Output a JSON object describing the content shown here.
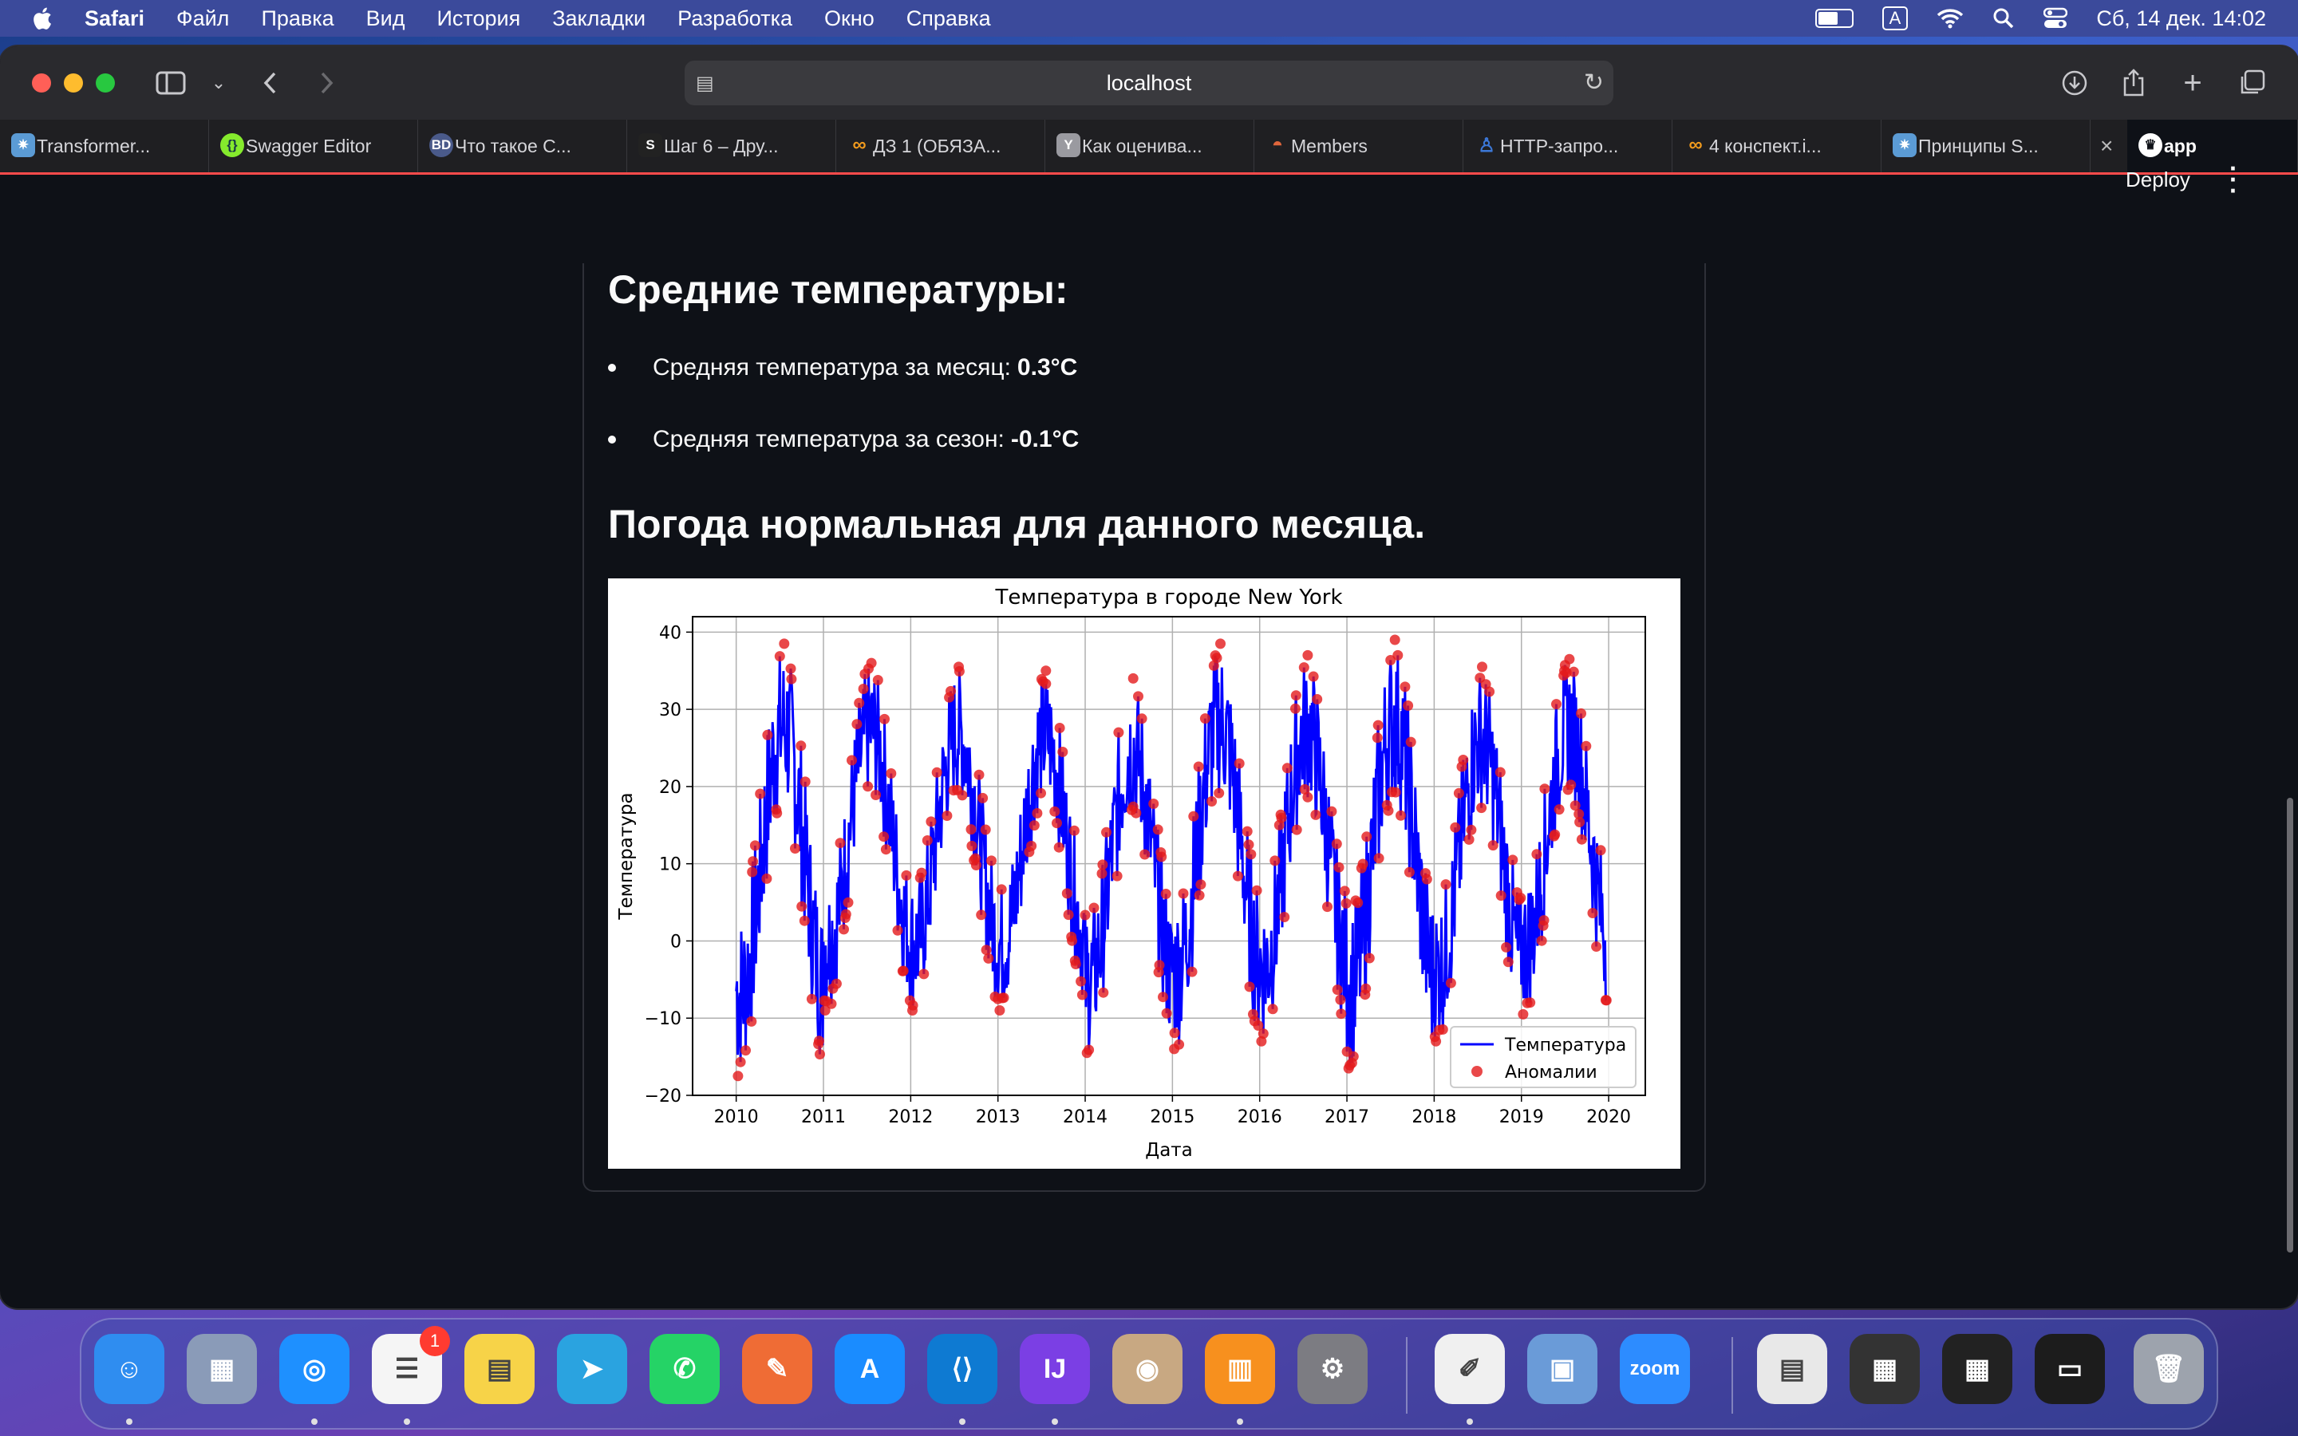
{
  "menubar": {
    "app_name": "Safari",
    "items": [
      "Файл",
      "Правка",
      "Вид",
      "История",
      "Закладки",
      "Разработка",
      "Окно",
      "Справка"
    ],
    "input_indicator": "A",
    "datetime": "Сб, 14 дек.  14:02"
  },
  "browser": {
    "address": "localhost",
    "tabs": [
      {
        "label": "Transformer...",
        "icon": "gear-icon",
        "color": "#5b9bd5"
      },
      {
        "label": "Swagger Editor",
        "icon": "swagger-icon",
        "color": "#85ea2d"
      },
      {
        "label": "Что такое C...",
        "icon": "bd-icon",
        "color": "#4a5a8a"
      },
      {
        "label": "Шаг 6 – Дру...",
        "icon": "stepik-icon",
        "color": "#222222"
      },
      {
        "label": "ДЗ 1 (ОБЯЗА...",
        "icon": "infinity-icon",
        "color": "#f29b1d"
      },
      {
        "label": "Как оценива...",
        "icon": "y-icon",
        "color": "#9a9aa0"
      },
      {
        "label": "Members",
        "icon": "helmet-icon",
        "color": "#e0663c"
      },
      {
        "label": "HTTP-запро...",
        "icon": "person-icon",
        "color": "#3c78d8"
      },
      {
        "label": "4 конспект.i...",
        "icon": "infinity-icon",
        "color": "#f29b1d"
      },
      {
        "label": "Принципы S...",
        "icon": "gear-icon",
        "color": "#5b9bd5"
      },
      {
        "label": "app",
        "icon": "streamlit-icon",
        "color": "#ff4b4b"
      }
    ]
  },
  "page": {
    "deploy_label": "Deploy",
    "heading_averages": "Средние температуры:",
    "month_avg_label": "Средняя температура за месяц:",
    "month_avg_value": "0.3°C",
    "season_avg_label": "Средняя температура за сезон:",
    "season_avg_value": "-0.1°C",
    "status_heading": "Погода нормальная для данного месяца."
  },
  "chart_data": {
    "type": "line",
    "title": "Температура в городе New York",
    "xlabel": "Дата",
    "ylabel": "Температура",
    "x_ticks": [
      "2010",
      "2011",
      "2012",
      "2013",
      "2014",
      "2015",
      "2016",
      "2017",
      "2018",
      "2019",
      "2020"
    ],
    "y_ticks": [
      -20,
      -10,
      0,
      10,
      20,
      30,
      40
    ],
    "ylim": [
      -20,
      42
    ],
    "xlim": [
      "2009-07",
      "2020-05"
    ],
    "grid": true,
    "legend_position": "bottom-right",
    "series": [
      {
        "name": "Температура",
        "color": "#0000ff",
        "kind": "line"
      },
      {
        "name": "Аномалии",
        "color": "#e31a1c",
        "kind": "scatter"
      }
    ],
    "yearly_extremes": [
      {
        "year": "2010",
        "min": -17.5,
        "max": 38.5
      },
      {
        "year": "2011",
        "min": -9,
        "max": 36
      },
      {
        "year": "2012",
        "min": -9,
        "max": 35.5
      },
      {
        "year": "2013",
        "min": -9,
        "max": 35
      },
      {
        "year": "2014",
        "min": -14.5,
        "max": 34
      },
      {
        "year": "2015",
        "min": -14,
        "max": 38.5
      },
      {
        "year": "2016",
        "min": -13,
        "max": 37
      },
      {
        "year": "2017",
        "min": -16.5,
        "max": 39
      },
      {
        "year": "2018",
        "min": -13,
        "max": 35.5
      },
      {
        "year": "2019",
        "min": -9.5,
        "max": 36.5
      },
      {
        "year": "2020",
        "min": -8,
        "max": 24
      }
    ]
  },
  "dock": {
    "apps": [
      {
        "name": "finder",
        "color": "#2f8df0",
        "glyph": "☺",
        "running": true
      },
      {
        "name": "launchpad",
        "color": "#8a9bb8",
        "glyph": "▦",
        "running": false
      },
      {
        "name": "safari",
        "color": "#1e90ff",
        "glyph": "◎",
        "running": true
      },
      {
        "name": "reminders",
        "color": "#f5f5f5",
        "glyph": "☰",
        "running": true,
        "badge": "1"
      },
      {
        "name": "notes",
        "color": "#f7d348",
        "glyph": "▤",
        "running": false
      },
      {
        "name": "telegram",
        "color": "#2aa3e0",
        "glyph": "➤",
        "running": false
      },
      {
        "name": "whatsapp",
        "color": "#25d366",
        "glyph": "✆",
        "running": false
      },
      {
        "name": "postman",
        "color": "#ef6c35",
        "glyph": "✎",
        "running": false
      },
      {
        "name": "app-store",
        "color": "#1a8cff",
        "glyph": "A",
        "running": false
      },
      {
        "name": "vscode",
        "color": "#0e7ad2",
        "glyph": "⟨⟩",
        "running": true
      },
      {
        "name": "intellij",
        "color": "#7b3fe4",
        "glyph": "IJ",
        "running": true
      },
      {
        "name": "dbeaver",
        "color": "#c8a882",
        "glyph": "◉",
        "running": false
      },
      {
        "name": "books",
        "color": "#f7901e",
        "glyph": "▥",
        "running": true
      },
      {
        "name": "system-settings",
        "color": "#7c7c82",
        "glyph": "⚙",
        "running": false
      },
      {
        "name": "freeform",
        "color": "#f0f0f0",
        "glyph": "✐",
        "running": true
      },
      {
        "name": "preview",
        "color": "#6a9bd8",
        "glyph": "▣",
        "running": false
      },
      {
        "name": "zoom",
        "color": "#2d8cff",
        "glyph": "zoom",
        "running": false
      },
      {
        "name": "document-thumbnail",
        "color": "#e8e8e8",
        "glyph": "▤",
        "running": false
      },
      {
        "name": "window-thumbnail-1",
        "color": "#333333",
        "glyph": "▦",
        "running": false
      },
      {
        "name": "window-thumbnail-2",
        "color": "#222222",
        "glyph": "▦",
        "running": false
      },
      {
        "name": "window-thumbnail-3",
        "color": "#1c1c1c",
        "glyph": "▭",
        "running": false
      },
      {
        "name": "trash",
        "color": "#9da3ad",
        "glyph": "🗑",
        "running": false
      }
    ]
  }
}
